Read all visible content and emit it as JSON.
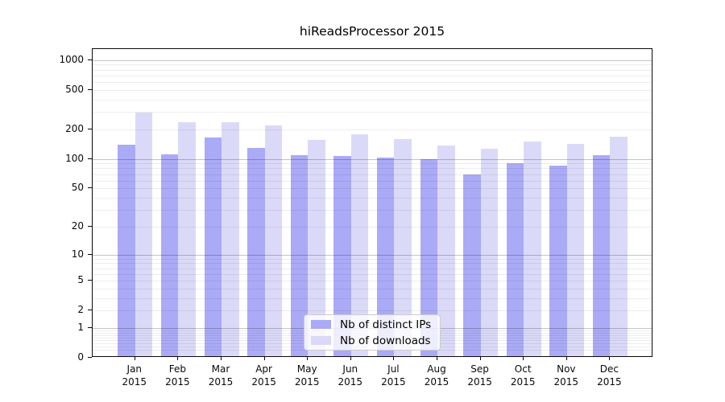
{
  "title": "hiReadsProcessor 2015",
  "colors": {
    "distinct_ips": "#aaaaf6",
    "downloads": "#dadaf8",
    "grid_major": "rgba(0,0,0,0.23)",
    "grid_minor": "rgba(0,0,0,0.07)",
    "axis": "#0a0a0a"
  },
  "legend": {
    "items": [
      {
        "label": "Nb of distinct IPs",
        "color_key": "distinct_ips"
      },
      {
        "label": "Nb of downloads",
        "color_key": "downloads"
      }
    ]
  },
  "chart_data": {
    "type": "bar",
    "title": "hiReadsProcessor 2015",
    "categories": [
      "Jan 2015",
      "Feb 2015",
      "Mar 2015",
      "Apr 2015",
      "May 2015",
      "Jun 2015",
      "Jul 2015",
      "Aug 2015",
      "Sep 2015",
      "Oct 2015",
      "Nov 2015",
      "Dec 2015"
    ],
    "series": [
      {
        "name": "Nb of distinct IPs",
        "values": [
          140,
          112,
          164,
          130,
          109,
          107,
          104,
          100,
          70,
          90,
          85,
          110
        ]
      },
      {
        "name": "Nb of downloads",
        "values": [
          293,
          235,
          237,
          217,
          155,
          177,
          158,
          136,
          126,
          150,
          143,
          167
        ]
      }
    ],
    "yscale": "log1p",
    "yticks": [
      0,
      1,
      2,
      5,
      10,
      20,
      50,
      100,
      200,
      500,
      1000
    ],
    "ylim": [
      0,
      1290
    ],
    "grid": "on",
    "legend_position": "lower center"
  }
}
